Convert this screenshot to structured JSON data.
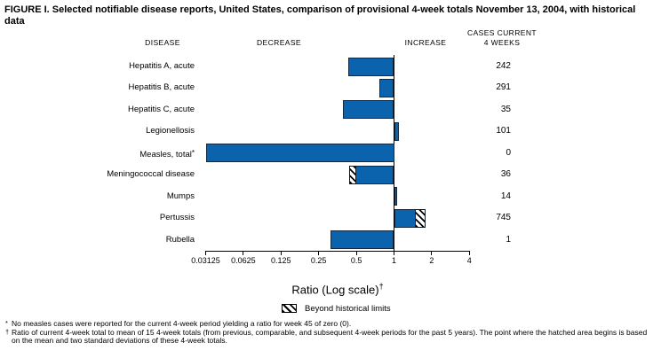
{
  "title": "FIGURE I. Selected notifiable disease reports, United States, comparison of provisional 4-week totals November 13, 2004, with historical data",
  "columns": {
    "disease": "DISEASE",
    "decrease": "DECREASE",
    "increase": "INCREASE",
    "cases_line1": "CASES CURRENT",
    "cases_line2": "4 WEEKS"
  },
  "chart_data": {
    "type": "bar",
    "orientation": "horizontal",
    "scale": "log2",
    "xlabel": "Ratio (Log scale)",
    "xlabel_marker": "†",
    "axis_min": 0.03125,
    "axis_max": 4,
    "baseline": 1,
    "ticks": [
      0.03125,
      0.0625,
      0.125,
      0.25,
      0.5,
      1,
      2,
      4
    ],
    "tick_labels": [
      "0.03125",
      "0.0625",
      "0.125",
      "0.25",
      "0.5",
      "1",
      "2",
      "4"
    ],
    "bar_color": "#0b63ad",
    "legend": {
      "swatch": "hatched",
      "label": "Beyond historical limits"
    },
    "rows": [
      {
        "disease": "Hepatitis A, acute",
        "ratio": 0.43,
        "cases": "242"
      },
      {
        "disease": "Hepatitis B, acute",
        "ratio": 0.76,
        "cases": "291"
      },
      {
        "disease": "Hepatitis C, acute",
        "ratio": 0.39,
        "cases": "35"
      },
      {
        "disease": "Legionellosis",
        "ratio": 1.1,
        "cases": "101"
      },
      {
        "disease": "Measles, total",
        "suffix": "*",
        "ratio": 0,
        "bar_to_axis_min": true,
        "cases": "0"
      },
      {
        "disease": "Meningococcal disease",
        "ratio": 0.44,
        "hatch": {
          "from": 0.44,
          "to": 0.5
        },
        "beyond_historical_limits": true,
        "cases": "36"
      },
      {
        "disease": "Mumps",
        "ratio": 1.06,
        "cases": "14"
      },
      {
        "disease": "Pertussis",
        "ratio": 1.8,
        "hatch": {
          "from": 1.47,
          "to": 1.8
        },
        "beyond_historical_limits": true,
        "cases": "745"
      },
      {
        "disease": "Rubella",
        "ratio": 0.31,
        "cases": "1"
      }
    ]
  },
  "footnotes": [
    {
      "marker": "*",
      "text": "No measles cases were reported for the current 4-week period yielding a ratio for week 45 of zero (0)."
    },
    {
      "marker": "†",
      "text": "Ratio of current 4-week total to mean of 15 4-week totals (from previous, comparable, and subsequent 4-week periods for the past 5 years). The point where the hatched area begins is based on the mean and two standard deviations of these 4-week totals."
    }
  ]
}
